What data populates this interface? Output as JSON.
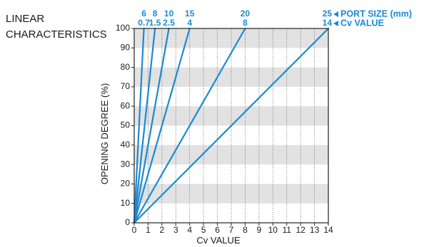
{
  "chart_data": {
    "type": "line",
    "title": [
      "LINEAR",
      "CHARACTERISTICS"
    ],
    "xlabel": "Cv VALUE",
    "ylabel": "OPENING DEGREE (%)",
    "xlim": [
      0,
      14
    ],
    "ylim": [
      0,
      100
    ],
    "x_ticks": [
      "0",
      "1",
      "2",
      "3",
      "4",
      "5",
      "6",
      "7",
      "8",
      "9",
      "10",
      "11",
      "12",
      "13",
      "14"
    ],
    "y_ticks": [
      "0",
      "10",
      "20",
      "30",
      "40",
      "50",
      "60",
      "70",
      "80",
      "90",
      "100"
    ],
    "grid": true,
    "line_color": "#1a8ad4",
    "label_color": "#1a8ad4",
    "band_color": "#e2e2e2",
    "legend": {
      "port_size": "PORT SIZE (mm)",
      "cv_value": "Cv VALUE",
      "marker_icon": "left-pointing-triangle-icon"
    },
    "series": [
      {
        "port_size": "6",
        "cv": "0.7",
        "x": [
          0,
          0.7
        ],
        "y": [
          0,
          100
        ]
      },
      {
        "port_size": "8",
        "cv": "1.5",
        "x": [
          0,
          1.5
        ],
        "y": [
          0,
          100
        ]
      },
      {
        "port_size": "10",
        "cv": "2.5",
        "x": [
          0,
          2.5
        ],
        "y": [
          0,
          100
        ]
      },
      {
        "port_size": "15",
        "cv": "4",
        "x": [
          0,
          4
        ],
        "y": [
          0,
          100
        ]
      },
      {
        "port_size": "20",
        "cv": "8",
        "x": [
          0,
          8
        ],
        "y": [
          0,
          100
        ]
      },
      {
        "port_size": "25",
        "cv": "14",
        "x": [
          0,
          14
        ],
        "y": [
          0,
          100
        ]
      }
    ]
  }
}
